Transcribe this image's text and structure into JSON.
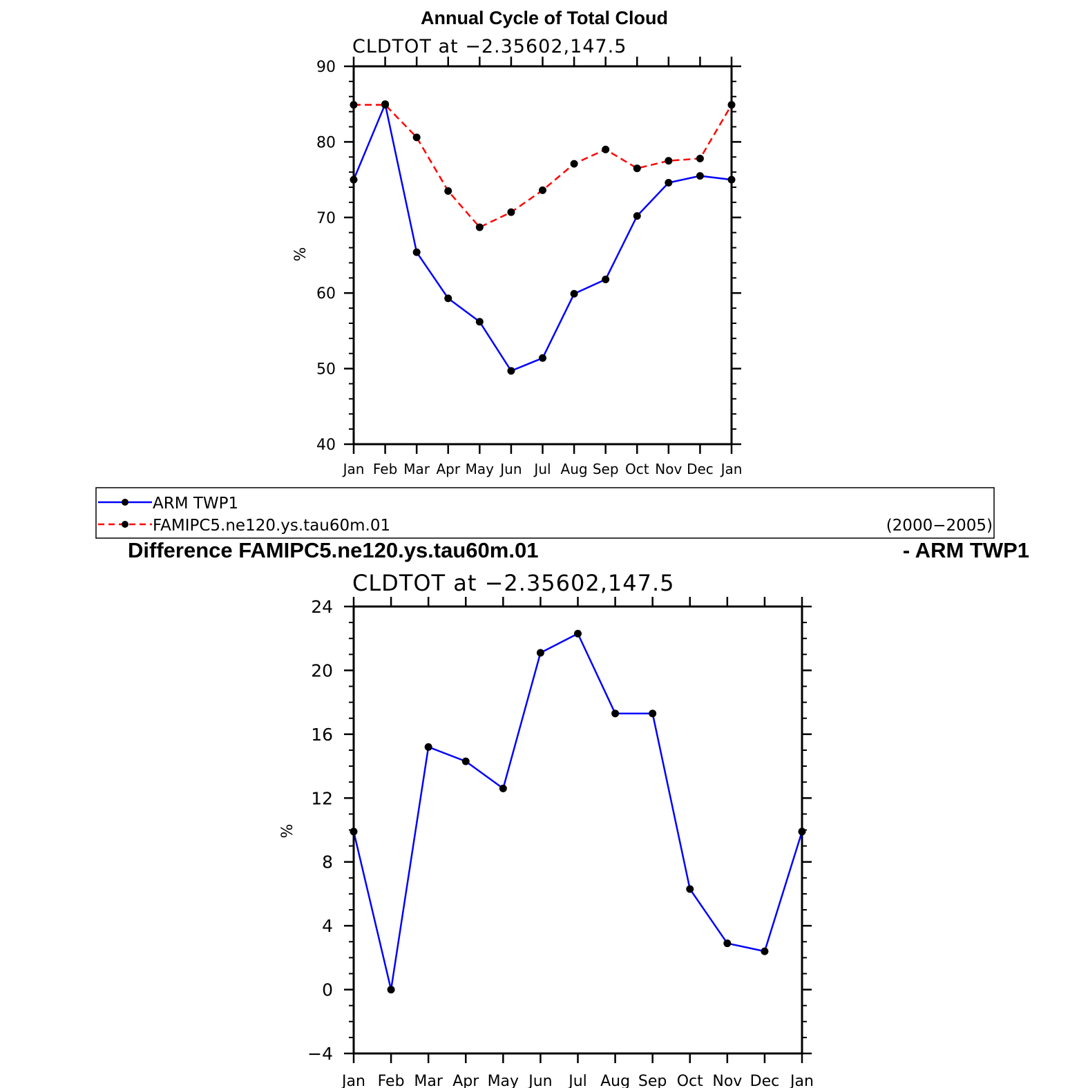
{
  "chart_data": [
    {
      "type": "line",
      "title": "Annual Cycle of Total Cloud",
      "subtitle": "CLDTOT at −2.35602,147.5",
      "ylabel": "%",
      "ylim": [
        40,
        90
      ],
      "yticks": [
        "40",
        "50",
        "60",
        "70",
        "80",
        "90"
      ],
      "categories": [
        "Jan",
        "Feb",
        "Mar",
        "Apr",
        "May",
        "Jun",
        "Jul",
        "Aug",
        "Sep",
        "Oct",
        "Nov",
        "Dec",
        "Jan"
      ],
      "series": [
        {
          "name": "ARM TWP1",
          "color": "#0000ff",
          "dash": "solid",
          "values": [
            75.0,
            85.0,
            65.4,
            59.3,
            56.2,
            49.7,
            51.4,
            59.9,
            61.8,
            70.2,
            74.6,
            75.5,
            75.0
          ]
        },
        {
          "name": "FAMIPC5.ne120.ys.tau60m.01",
          "color": "#ff0000",
          "dash": "dashed",
          "values": [
            84.9,
            84.9,
            80.6,
            73.5,
            68.7,
            70.7,
            73.6,
            77.1,
            79.0,
            76.5,
            77.5,
            77.8,
            84.9
          ]
        }
      ],
      "legend": {
        "entries": [
          "ARM TWP1",
          "FAMIPC5.ne120.ys.tau60m.01"
        ],
        "period": "(2000−2005)",
        "placement": "below"
      }
    },
    {
      "type": "line",
      "title_left": "Difference FAMIPC5.ne120.ys.tau60m.01",
      "title_right": "- ARM TWP1",
      "subtitle": "CLDTOT at −2.35602,147.5",
      "ylabel": "%",
      "ylim": [
        -4,
        24
      ],
      "yticks": [
        "−4",
        "0",
        "4",
        "8",
        "12",
        "16",
        "20",
        "24"
      ],
      "categories": [
        "Jan",
        "Feb",
        "Mar",
        "Apr",
        "May",
        "Jun",
        "Jul",
        "Aug",
        "Sep",
        "Oct",
        "Nov",
        "Dec",
        "Jan"
      ],
      "series": [
        {
          "name": "Difference",
          "color": "#0000ff",
          "dash": "solid",
          "values": [
            9.9,
            0.0,
            15.2,
            14.3,
            12.6,
            21.1,
            22.3,
            17.3,
            17.3,
            6.3,
            2.9,
            2.4,
            9.9
          ]
        }
      ]
    }
  ]
}
